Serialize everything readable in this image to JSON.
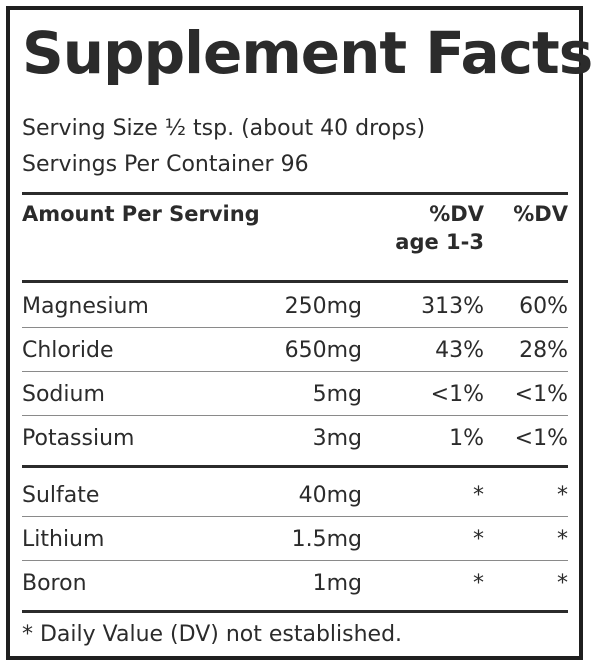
{
  "label": {
    "title": "Supplement Facts",
    "serving_size": "Serving Size ½ tsp. (about 40 drops)",
    "servings_per_container": "Servings Per Container 96",
    "headers": {
      "amount_per_serving": "Amount Per Serving",
      "dv_child_line1": "%DV",
      "dv_child_line2": "age 1-3",
      "dv_adult": "%DV"
    },
    "nutrients": [
      {
        "name": "Magnesium",
        "amount": "250mg",
        "dv_child": "313%",
        "dv_adult": "60%"
      },
      {
        "name": "Chloride",
        "amount": "650mg",
        "dv_child": "43%",
        "dv_adult": "28%"
      },
      {
        "name": "Sodium",
        "amount": "5mg",
        "dv_child": "<1%",
        "dv_adult": "<1%"
      },
      {
        "name": "Potassium",
        "amount": "3mg",
        "dv_child": "1%",
        "dv_adult": "<1%"
      }
    ],
    "other_ingredients": [
      {
        "name": "Sulfate",
        "amount": "40mg",
        "dv_child": "*",
        "dv_adult": "*"
      },
      {
        "name": "Lithium",
        "amount": "1.5mg",
        "dv_child": "*",
        "dv_adult": "*"
      },
      {
        "name": "Boron",
        "amount": "1mg",
        "dv_child": "*",
        "dv_adult": "*"
      }
    ],
    "footnote": "* Daily Value (DV) not established."
  }
}
